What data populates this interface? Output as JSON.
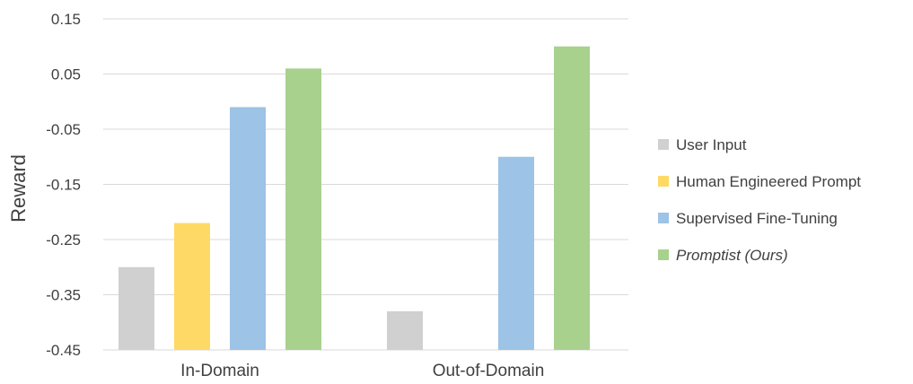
{
  "chart_data": {
    "type": "bar",
    "ylabel": "Reward",
    "ylim": [
      -0.45,
      0.15
    ],
    "yticks": [
      "0.15",
      "0.05",
      "-0.05",
      "-0.15",
      "-0.25",
      "-0.35",
      "-0.45"
    ],
    "yticks_values": [
      0.15,
      0.05,
      -0.05,
      -0.15,
      -0.25,
      -0.35,
      -0.45
    ],
    "categories": [
      "In-Domain",
      "Out-of-Domain"
    ],
    "grid": true,
    "legend_position": "right",
    "series": [
      {
        "name": "User Input",
        "color": "#d0d0d0",
        "values": [
          -0.3,
          -0.38
        ]
      },
      {
        "name": "Human Engineered Prompt",
        "color": "#ffd966",
        "values": [
          -0.22,
          null
        ]
      },
      {
        "name": "Supervised Fine-Tuning",
        "color": "#9dc3e6",
        "values": [
          -0.01,
          -0.1
        ]
      },
      {
        "name": "Promptist (Ours)",
        "color": "#a9d18e",
        "values": [
          0.06,
          0.1
        ],
        "italic": true
      }
    ]
  }
}
